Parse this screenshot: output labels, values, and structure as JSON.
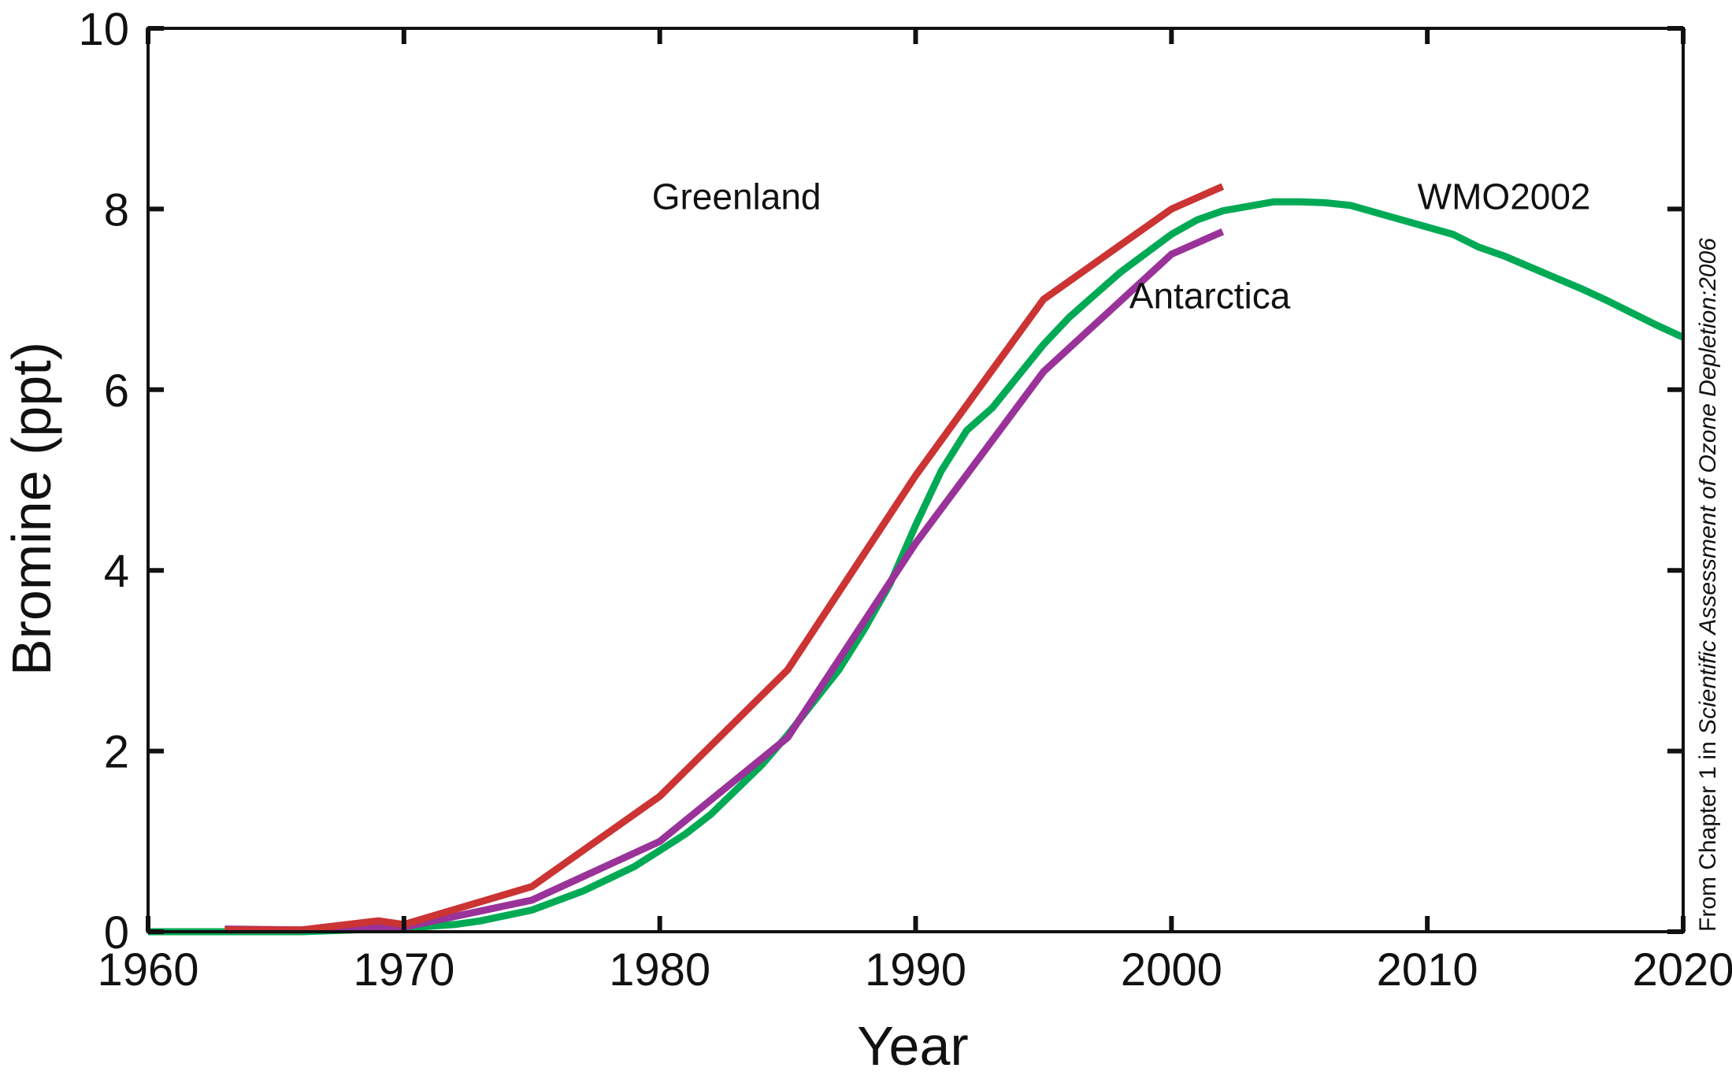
{
  "chart_data": {
    "type": "line",
    "xlabel": "Year",
    "ylabel": "Bromine (ppt)",
    "xlim": [
      1960,
      2020
    ],
    "ylim": [
      0,
      10
    ],
    "x_ticks": [
      1960,
      1970,
      1980,
      1990,
      2000,
      2010,
      2020
    ],
    "y_ticks": [
      0,
      2,
      4,
      6,
      8,
      10
    ],
    "grid": false,
    "source_note": {
      "prefix": "From Chapter 1 in ",
      "title": "Scientific Assessment of Ozone Depletion:2006"
    },
    "series": [
      {
        "name": "Greenland",
        "color": "#cc3333",
        "x": [
          1963,
          1966,
          1969,
          1970,
          1975,
          1980,
          1985,
          1990,
          1995,
          2000,
          2002
        ],
        "y": [
          0.02,
          0.02,
          0.12,
          0.08,
          0.5,
          1.5,
          2.9,
          5.05,
          7.0,
          8.0,
          8.25
        ]
      },
      {
        "name": "Antarctica",
        "color": "#993399",
        "x": [
          1963,
          1966,
          1970,
          1975,
          1980,
          1985,
          1990,
          1995,
          2000,
          2002
        ],
        "y": [
          0.03,
          0.02,
          0.05,
          0.35,
          1.0,
          2.15,
          4.3,
          6.2,
          7.5,
          7.75
        ]
      },
      {
        "name": "WMO2002",
        "color": "#00aa55",
        "x": [
          1960,
          1966,
          1968,
          1970,
          1972,
          1973,
          1975,
          1977,
          1979,
          1980,
          1981,
          1982,
          1984,
          1985,
          1987,
          1988,
          1989,
          1990,
          1991,
          1992,
          1993,
          1994,
          1995,
          1996,
          1998,
          2000,
          2001,
          2002,
          2004,
          2005,
          2006,
          2007,
          2009,
          2011,
          2012,
          2013,
          2014,
          2015,
          2016,
          2017,
          2018,
          2019,
          2020
        ],
        "y": [
          0.0,
          0.0,
          0.02,
          0.04,
          0.08,
          0.12,
          0.24,
          0.45,
          0.72,
          0.9,
          1.08,
          1.3,
          1.85,
          2.18,
          2.9,
          3.35,
          3.85,
          4.5,
          5.1,
          5.55,
          5.8,
          6.15,
          6.5,
          6.8,
          7.3,
          7.72,
          7.88,
          7.98,
          8.08,
          8.08,
          8.07,
          8.04,
          7.88,
          7.72,
          7.58,
          7.48,
          7.36,
          7.24,
          7.12,
          6.99,
          6.85,
          6.71,
          6.58
        ]
      }
    ]
  }
}
